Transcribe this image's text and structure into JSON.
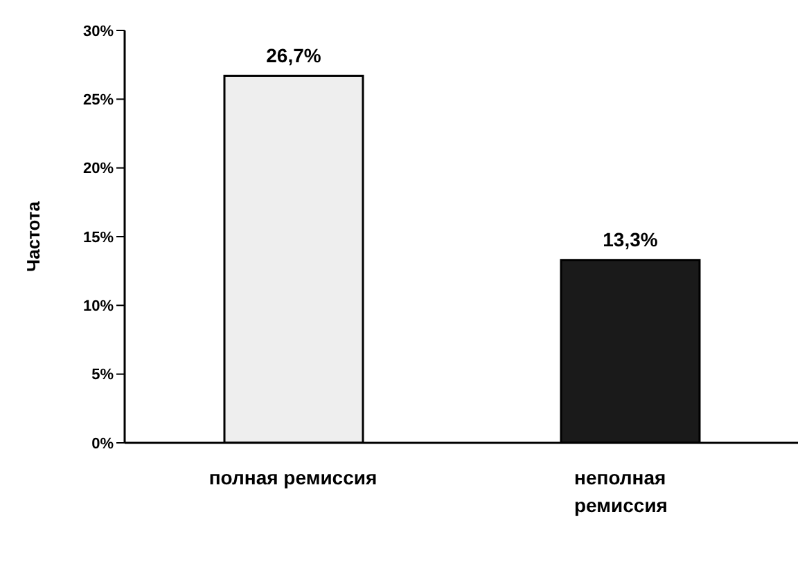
{
  "chart_data": {
    "type": "bar",
    "ylabel": "Частота",
    "categories": [
      "полная ремиссия",
      "неполная ремиссия"
    ],
    "values": [
      26.7,
      13.3
    ],
    "colors": [
      "#eeeeee",
      "#1a1a1a"
    ],
    "value_labels": [
      "26,7%",
      "13,3%"
    ],
    "ylim": [
      0,
      30
    ],
    "yticks": [
      {
        "value": 0,
        "label": "0%"
      },
      {
        "value": 5,
        "label": "5%"
      },
      {
        "value": 10,
        "label": "10%"
      },
      {
        "value": 15,
        "label": "15%"
      },
      {
        "value": 20,
        "label": "20%"
      },
      {
        "value": 25,
        "label": "25%"
      },
      {
        "value": 30,
        "label": "30%"
      }
    ],
    "grid": false,
    "legend": false
  }
}
